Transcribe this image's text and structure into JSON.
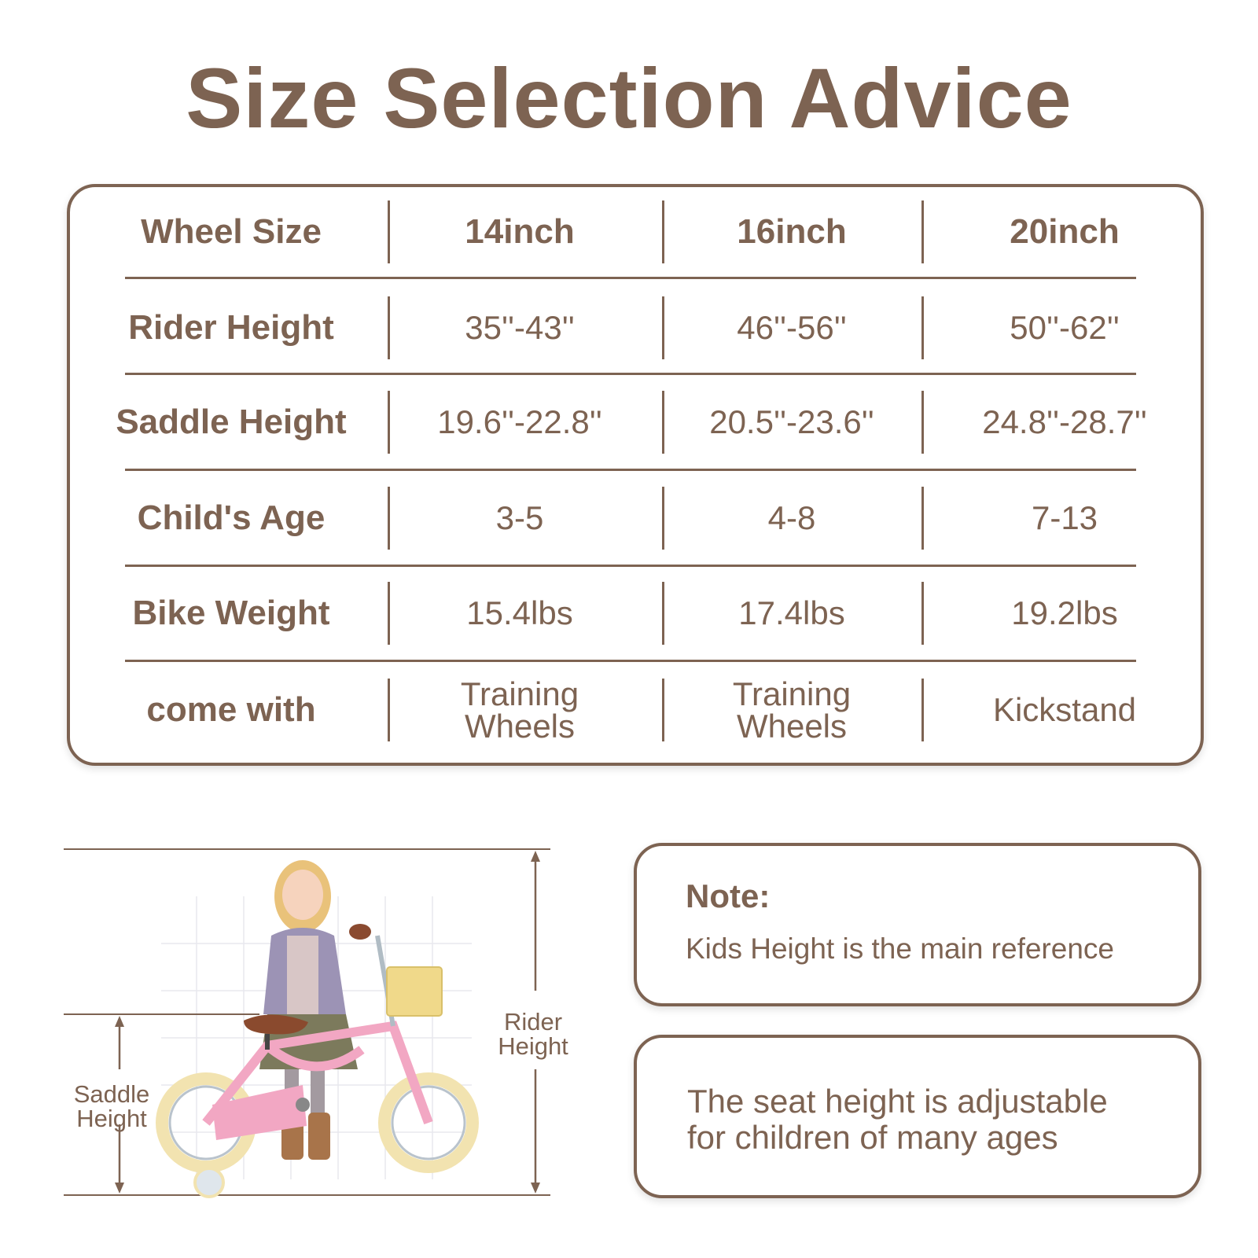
{
  "title": "Size Selection Advice",
  "table": {
    "rows": [
      {
        "label": "Wheel Size",
        "values": [
          "14inch",
          "16inch",
          "20inch"
        ]
      },
      {
        "label": "Rider Height",
        "values": [
          "35''-43''",
          "46''-56''",
          "50''-62''"
        ]
      },
      {
        "label": "Saddle Height",
        "values": [
          "19.6''-22.8''",
          "20.5''-23.6''",
          "24.8''-28.7''"
        ]
      },
      {
        "label": "Child's Age",
        "values": [
          "3-5",
          "4-8",
          "7-13"
        ]
      },
      {
        "label": "Bike Weight",
        "values": [
          "15.4lbs",
          "17.4lbs",
          "19.2lbs"
        ]
      },
      {
        "label": "come with",
        "values": [
          "Training\nWheels",
          "Training\nWheels",
          "Kickstand"
        ]
      }
    ]
  },
  "illustration": {
    "saddle_label": "Saddle\nHeight",
    "rider_label": "Rider\nHeight"
  },
  "note": {
    "title": "Note:",
    "text": "Kids Height is the main reference"
  },
  "note2": {
    "text": "The seat height is adjustable\nfor children of many ages"
  },
  "colors": {
    "brown": "#7d6352",
    "bike_pink": "#f2a7c3",
    "tire_cream": "#f2e3b0",
    "basket": "#f0d98a"
  }
}
